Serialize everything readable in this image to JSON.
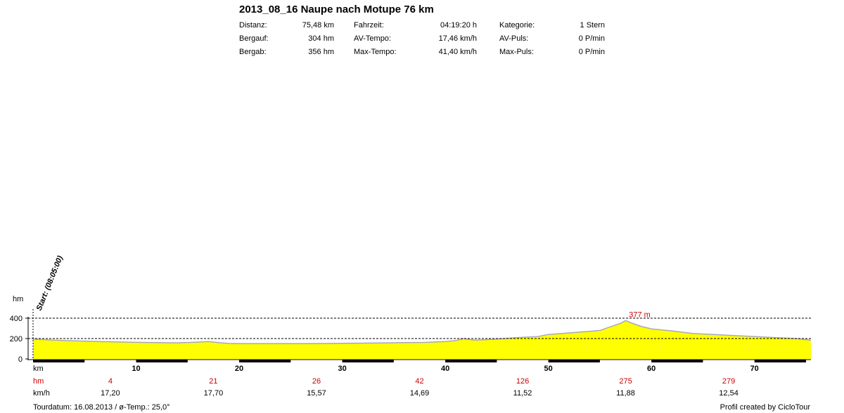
{
  "title": "2013_08_16 Naupe nach Motupe 76 km",
  "stats": {
    "col1": [
      {
        "label": "Distanz:",
        "value": "75,48 km"
      },
      {
        "label": "Bergauf:",
        "value": "304 hm"
      },
      {
        "label": "Bergab:",
        "value": "356 hm"
      }
    ],
    "col2": [
      {
        "label": "Fahrzeit:",
        "value": "04:19:20 h"
      },
      {
        "label": "AV-Tempo:",
        "value": "17,46 km/h"
      },
      {
        "label": "Max-Tempo:",
        "value": "41,40 km/h"
      }
    ],
    "col3": [
      {
        "label": "Kategorie:",
        "value": "1 Stern"
      },
      {
        "label": "AV-Puls:",
        "value": "0 P/min"
      },
      {
        "label": "Max-Puls:",
        "value": "0 P/min"
      }
    ]
  },
  "colors": {
    "fill": "#ffff00",
    "outline": "#a8a8b8",
    "red_text": "#cc0000",
    "axis": "#000000"
  },
  "chart_data": {
    "type": "area",
    "ylabel": "hm",
    "xlabel": "km",
    "xlim": [
      0,
      75.48
    ],
    "ylim": [
      0,
      400
    ],
    "y_ticks": [
      "0",
      "200",
      "400"
    ],
    "x_ticks": [
      "10",
      "20",
      "30",
      "40",
      "50",
      "60",
      "70"
    ],
    "start_label": "Start: (08:05:00)",
    "peak_label": "377 m",
    "elevation_profile": {
      "x": [
        0,
        2,
        4,
        6,
        8,
        10,
        12,
        14,
        16,
        17,
        18,
        19,
        20,
        22,
        24,
        26,
        28,
        30,
        32,
        34,
        36,
        38,
        40,
        41,
        41.8,
        42.3,
        43,
        45,
        47,
        49,
        50,
        52,
        54,
        55,
        56,
        57,
        57.5,
        58,
        59,
        60,
        62,
        64,
        66,
        68,
        70,
        72,
        74,
        75.48
      ],
      "y": [
        195,
        185,
        178,
        172,
        167,
        163,
        160,
        158,
        165,
        170,
        160,
        152,
        150,
        150,
        150,
        150,
        151,
        153,
        155,
        157,
        160,
        162,
        170,
        180,
        200,
        190,
        185,
        195,
        210,
        220,
        240,
        255,
        270,
        280,
        315,
        350,
        377,
        355,
        320,
        295,
        275,
        250,
        240,
        230,
        220,
        210,
        200,
        185
      ]
    },
    "km_row": [
      "10",
      "20",
      "30",
      "40",
      "50",
      "60",
      "70"
    ],
    "hm_row": {
      "label": "hm",
      "values": [
        "4",
        "21",
        "26",
        "42",
        "126",
        "275",
        "279"
      ],
      "x_km": [
        7.5,
        17.5,
        27.5,
        37.5,
        47.5,
        57.5,
        67.5
      ]
    },
    "kmh_row": {
      "label": "km/h",
      "values": [
        "17,20",
        "17,70",
        "15,57",
        "14,69",
        "11,52",
        "11,88",
        "12,54"
      ],
      "x_km": [
        7.5,
        17.5,
        27.5,
        37.5,
        47.5,
        57.5,
        67.5
      ]
    }
  },
  "footer": {
    "left": "Tourdatum: 16.08.2013  /  ø-Temp.: 25,0°",
    "right": "Profil created by CicloTour"
  }
}
